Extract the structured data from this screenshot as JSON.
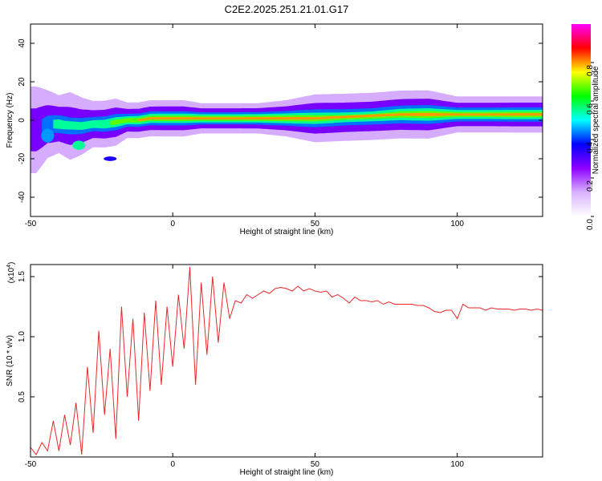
{
  "title": "C2E2.2025.251.21.01.G17",
  "chart_data": [
    {
      "type": "heatmap",
      "xlabel": "Height of straight line (km)",
      "ylabel": "Frequency (Hz)",
      "xlim": [
        -50,
        130
      ],
      "ylim": [
        -50,
        50
      ],
      "xticks": [
        "-50",
        "0",
        "50",
        "100"
      ],
      "yticks": [
        "40",
        "20",
        "0",
        "-20",
        "-40"
      ],
      "colorbar": {
        "label": "Normalized spectral amplitude",
        "range": [
          0,
          1
        ],
        "ticks": [
          "0.0",
          "0.2",
          "0.4",
          "0.6",
          "0.8"
        ],
        "colors": [
          "#ffffff",
          "#d9b3ff",
          "#8f00ff",
          "#0000ff",
          "#00ffff",
          "#00ff00",
          "#ffff00",
          "#ff0000",
          "#ff00ff"
        ]
      },
      "ridge": [
        {
          "x": -48,
          "f": -5,
          "w": 8,
          "a": 0.35
        },
        {
          "x": -44,
          "f": -2,
          "w": 6,
          "a": 0.45
        },
        {
          "x": -40,
          "f": -2,
          "w": 5,
          "a": 0.55
        },
        {
          "x": -36,
          "f": -3,
          "w": 6,
          "a": 0.45
        },
        {
          "x": -32,
          "f": -3,
          "w": 5,
          "a": 0.5
        },
        {
          "x": -28,
          "f": -2,
          "w": 4,
          "a": 0.55
        },
        {
          "x": -24,
          "f": -2,
          "w": 4,
          "a": 0.6
        },
        {
          "x": -20,
          "f": -1,
          "w": 4,
          "a": 0.65
        },
        {
          "x": -16,
          "f": 0,
          "w": 3,
          "a": 0.7
        },
        {
          "x": -12,
          "f": 0,
          "w": 3,
          "a": 0.75
        },
        {
          "x": -8,
          "f": 1,
          "w": 3,
          "a": 0.8
        },
        {
          "x": -4,
          "f": 1,
          "w": 3,
          "a": 0.85
        },
        {
          "x": 0,
          "f": 1,
          "w": 3,
          "a": 0.85
        },
        {
          "x": 4,
          "f": 1,
          "w": 3,
          "a": 0.85
        },
        {
          "x": 10,
          "f": 1,
          "w": 2.5,
          "a": 0.9
        },
        {
          "x": 20,
          "f": 1,
          "w": 2.5,
          "a": 0.9
        },
        {
          "x": 30,
          "f": 1,
          "w": 2.5,
          "a": 0.95
        },
        {
          "x": 40,
          "f": 1,
          "w": 3,
          "a": 0.9
        },
        {
          "x": 50,
          "f": 1,
          "w": 4,
          "a": 0.75
        },
        {
          "x": 60,
          "f": 1.5,
          "w": 4,
          "a": 0.65
        },
        {
          "x": 70,
          "f": 2,
          "w": 4,
          "a": 0.65
        },
        {
          "x": 80,
          "f": 3,
          "w": 4,
          "a": 0.75
        },
        {
          "x": 90,
          "f": 3,
          "w": 4,
          "a": 0.85
        },
        {
          "x": 100,
          "f": 3,
          "w": 3,
          "a": 0.8
        },
        {
          "x": 110,
          "f": 3,
          "w": 3,
          "a": 0.8
        },
        {
          "x": 120,
          "f": 3,
          "w": 3,
          "a": 0.85
        },
        {
          "x": 130,
          "f": 3,
          "w": 3,
          "a": 0.85
        }
      ],
      "blobs": [
        {
          "x": -44,
          "f": -8,
          "w": 3,
          "a": 0.45
        },
        {
          "x": -33,
          "f": -13,
          "w": 2,
          "a": 0.55
        },
        {
          "x": -22,
          "f": -20,
          "w": 1,
          "a": 0.35
        }
      ]
    },
    {
      "type": "line",
      "xlabel": "Height of straight line (km)",
      "ylabel": "SNR (10 * v/v)",
      "yscale_label": "(x10",
      "yscale_exp": "4",
      "yscale_close": ")",
      "xlim": [
        -50,
        130
      ],
      "ylim": [
        0,
        1.6
      ],
      "xticks": [
        "-50",
        "0",
        "50",
        "100"
      ],
      "yticks": [
        "1.5",
        "1.0",
        "0.5"
      ],
      "color": "#e8272a",
      "x": [
        -50,
        -48,
        -46,
        -44,
        -42,
        -40,
        -38,
        -36,
        -34,
        -32,
        -30,
        -28,
        -26,
        -24,
        -22,
        -20,
        -18,
        -16,
        -14,
        -12,
        -10,
        -8,
        -6,
        -4,
        -2,
        0,
        2,
        4,
        6,
        8,
        10,
        12,
        14,
        16,
        18,
        20,
        22,
        24,
        26,
        28,
        30,
        32,
        34,
        36,
        38,
        40,
        42,
        44,
        46,
        48,
        50,
        52,
        54,
        56,
        58,
        60,
        62,
        64,
        66,
        68,
        70,
        72,
        74,
        76,
        78,
        80,
        82,
        84,
        86,
        88,
        90,
        92,
        94,
        96,
        98,
        100,
        102,
        104,
        106,
        108,
        110,
        112,
        114,
        116,
        118,
        120,
        122,
        124,
        126,
        128,
        130
      ],
      "y": [
        0.08,
        0.02,
        0.12,
        0.05,
        0.3,
        0.05,
        0.35,
        0.1,
        0.45,
        0.02,
        0.75,
        0.2,
        1.05,
        0.35,
        0.9,
        0.15,
        1.25,
        0.5,
        1.15,
        0.3,
        1.2,
        0.55,
        1.3,
        0.6,
        1.25,
        0.75,
        1.35,
        0.9,
        1.58,
        0.6,
        1.45,
        0.85,
        1.5,
        0.95,
        1.45,
        1.15,
        1.3,
        1.28,
        1.35,
        1.32,
        1.35,
        1.38,
        1.36,
        1.4,
        1.41,
        1.4,
        1.38,
        1.42,
        1.38,
        1.4,
        1.38,
        1.37,
        1.38,
        1.33,
        1.35,
        1.32,
        1.28,
        1.33,
        1.3,
        1.3,
        1.29,
        1.3,
        1.27,
        1.29,
        1.27,
        1.27,
        1.27,
        1.27,
        1.26,
        1.26,
        1.24,
        1.21,
        1.2,
        1.22,
        1.22,
        1.15,
        1.27,
        1.24,
        1.24,
        1.24,
        1.22,
        1.24,
        1.23,
        1.23,
        1.23,
        1.22,
        1.23,
        1.23,
        1.22,
        1.23,
        1.22
      ]
    }
  ]
}
